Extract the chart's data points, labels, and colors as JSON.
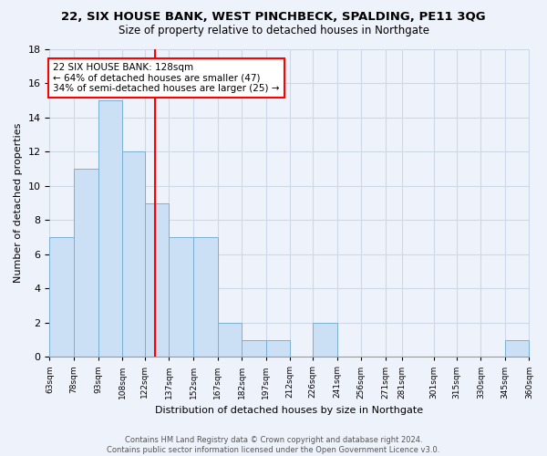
{
  "title": "22, SIX HOUSE BANK, WEST PINCHBECK, SPALDING, PE11 3QG",
  "subtitle": "Size of property relative to detached houses in Northgate",
  "xlabel": "Distribution of detached houses by size in Northgate",
  "ylabel": "Number of detached properties",
  "bar_edges": [
    63,
    78,
    93,
    108,
    122,
    137,
    152,
    167,
    182,
    197,
    212,
    226,
    241,
    256,
    271,
    281,
    301,
    315,
    330,
    345,
    360
  ],
  "bar_heights": [
    7,
    11,
    15,
    12,
    9,
    7,
    7,
    2,
    1,
    1,
    0,
    2,
    0,
    0,
    0,
    0,
    0,
    0,
    0,
    1
  ],
  "tick_labels": [
    "63sqm",
    "78sqm",
    "93sqm",
    "108sqm",
    "122sqm",
    "137sqm",
    "152sqm",
    "167sqm",
    "182sqm",
    "197sqm",
    "212sqm",
    "226sqm",
    "241sqm",
    "256sqm",
    "271sqm",
    "281sqm",
    "301sqm",
    "315sqm",
    "330sqm",
    "345sqm",
    "360sqm"
  ],
  "bar_color": "#cce0f5",
  "bar_edge_color": "#7ab0d4",
  "red_line_x": 128,
  "annotation_text": "22 SIX HOUSE BANK: 128sqm\n← 64% of detached houses are smaller (47)\n34% of semi-detached houses are larger (25) →",
  "annotation_box_color": "white",
  "annotation_box_edge": "red",
  "grid_color": "#d0d8e8",
  "background_color": "#eef3fb",
  "footer_text": "Contains HM Land Registry data © Crown copyright and database right 2024.\nContains public sector information licensed under the Open Government Licence v3.0.",
  "ylim": [
    0,
    18
  ],
  "yticks": [
    0,
    2,
    4,
    6,
    8,
    10,
    12,
    14,
    16,
    18
  ]
}
